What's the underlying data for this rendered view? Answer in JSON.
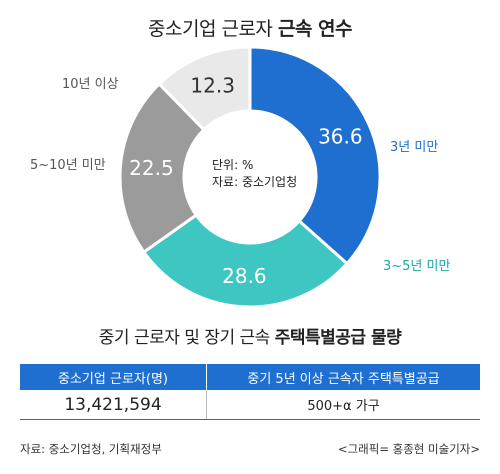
{
  "title": {
    "normal": "중소기업 근로자",
    "bold": "근속 연수"
  },
  "center_note": {
    "unit": "단위: %",
    "source": "자료: 중소기업청"
  },
  "chart_data": {
    "type": "pie",
    "title": "중소기업 근로자 근속 연수",
    "categories": [
      "3년 미만",
      "3~5년 미만",
      "5~10년 미만",
      "10년 이상"
    ],
    "values": [
      36.6,
      28.6,
      22.5,
      12.3
    ],
    "value_labels": [
      "36.6",
      "28.6",
      "22.5",
      "12.3"
    ],
    "colors": [
      "#1f6fd0",
      "#3ec6c3",
      "#9b9b9b",
      "#e9e9e9"
    ],
    "donut": true
  },
  "subtitle": {
    "normal": "중기 근로자 및 장기 근속",
    "bold": "주택특별공급 물량"
  },
  "table": {
    "headers": [
      "중소기업 근로자(명)",
      "중기 5년 이상 근속자 주택특별공급"
    ],
    "row": [
      "13,421,594",
      "500+α 가구"
    ]
  },
  "footer": {
    "source": "자료: 중소기업청, 기획재정부",
    "credit": "<그래픽= 홍종현 미술기자>"
  }
}
